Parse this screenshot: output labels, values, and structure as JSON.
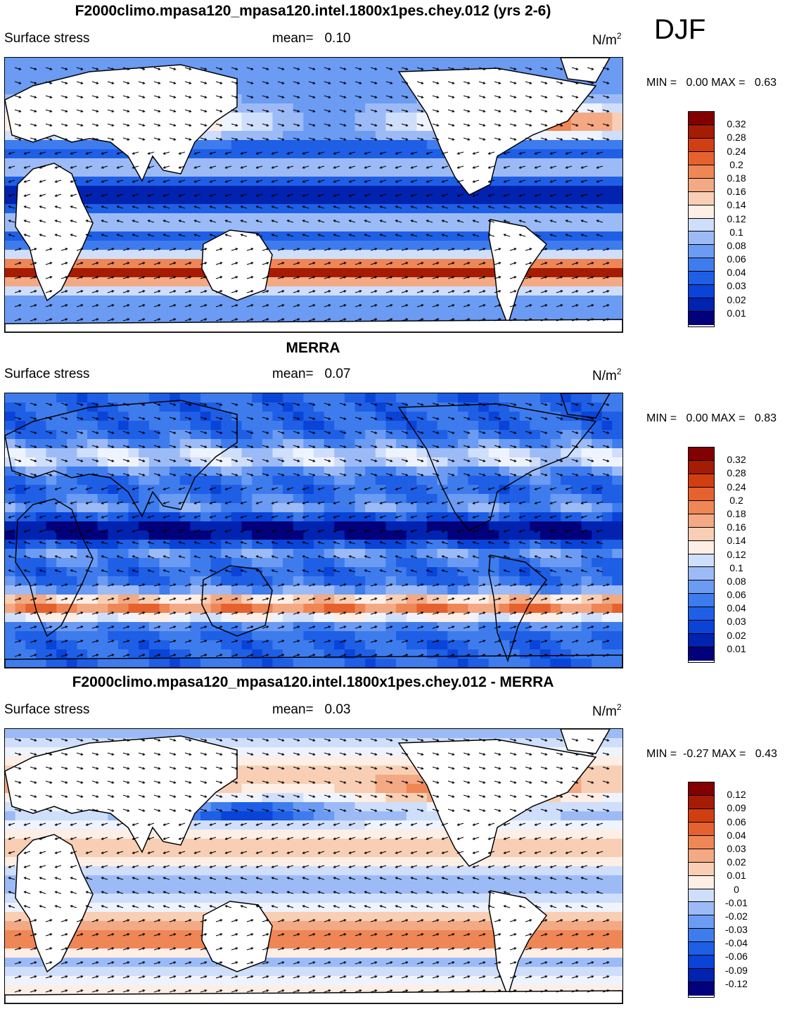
{
  "season": "DJF",
  "colors": {
    "c13": [
      "#03007b",
      "#0222b0",
      "#0a43d8",
      "#1e5fe6",
      "#3e7cee",
      "#6b9bf2",
      "#a5c2f7",
      "#dde8fb",
      "#fbe8dc",
      "#f7c0a2",
      "#f09a73",
      "#e9703f",
      "#d7481c",
      "#b32307",
      "#880000"
    ],
    "c16": [
      "#03007b",
      "#0222b0",
      "#0a43d8",
      "#1e5fe6",
      "#3e7cee",
      "#6b9bf2",
      "#9cbbf6",
      "#cfdefa",
      "#eef3fd",
      "#fdeee6",
      "#f8cfb4",
      "#f3a984",
      "#ee8656",
      "#e5622e",
      "#d03e12",
      "#a51c04",
      "#820000"
    ],
    "land": "#ffffff"
  },
  "panels": [
    {
      "title": "F2000climo.mpasa120_mpasa120.intel.1800x1pes.chey.012 (yrs 2-6)",
      "left_label": "Surface stress",
      "mean_label": "mean=",
      "mean_value": "0.10",
      "units": "N/m",
      "units_exp": "2",
      "min_label": "MIN =",
      "min_value": "0.00",
      "max_label": "MAX =",
      "max_value": "0.63"
    },
    {
      "title": "MERRA",
      "left_label": "Surface stress",
      "mean_label": "mean=",
      "mean_value": "0.07",
      "units": "N/m",
      "units_exp": "2",
      "min_label": "MIN =",
      "min_value": "0.00",
      "max_label": "MAX =",
      "max_value": "0.83"
    },
    {
      "title": "F2000climo.mpasa120_mpasa120.intel.1800x1pes.chey.012 - MERRA",
      "left_label": "Surface stress",
      "mean_label": "mean=",
      "mean_value": "0.03",
      "units": "N/m",
      "units_exp": "2",
      "min_label": "MIN =",
      "min_value": "-0.27",
      "max_label": "MAX =",
      "max_value": "0.43"
    }
  ],
  "chart_data": [
    {
      "type": "heatmap",
      "title": "F2000climo.mpasa120_mpasa120.intel.1800x1pes.chey.012 (yrs 2-6)",
      "variable": "Surface stress",
      "units": "N/m^2",
      "mean": 0.1,
      "min": 0.0,
      "max": 0.63,
      "colorbar_levels": [
        "0.32",
        "0.28",
        "0.24",
        "0.2",
        "0.18",
        "0.16",
        "0.14",
        "0.12",
        "0.1",
        "0.08",
        "0.06",
        "0.04",
        "0.03",
        "0.02",
        "0.01"
      ],
      "overlay": "wind stress vectors"
    },
    {
      "type": "heatmap",
      "title": "MERRA",
      "variable": "Surface stress",
      "units": "N/m^2",
      "mean": 0.07,
      "min": 0.0,
      "max": 0.83,
      "colorbar_levels": [
        "0.32",
        "0.28",
        "0.24",
        "0.2",
        "0.18",
        "0.16",
        "0.14",
        "0.12",
        "0.1",
        "0.08",
        "0.06",
        "0.04",
        "0.03",
        "0.02",
        "0.01"
      ],
      "overlay": "wind stress vectors"
    },
    {
      "type": "heatmap",
      "title": "F2000climo.mpasa120_mpasa120.intel.1800x1pes.chey.012 - MERRA",
      "variable": "Surface stress",
      "units": "N/m^2",
      "mean": 0.03,
      "min": -0.27,
      "max": 0.43,
      "colorbar_levels": [
        "0.12",
        "0.09",
        "0.06",
        "0.04",
        "0.03",
        "0.02",
        "0.01",
        "0",
        "-0.01",
        "-0.02",
        "-0.03",
        "-0.04",
        "-0.06",
        "-0.09",
        "-0.12"
      ],
      "overlay": "wind stress difference vectors"
    }
  ]
}
